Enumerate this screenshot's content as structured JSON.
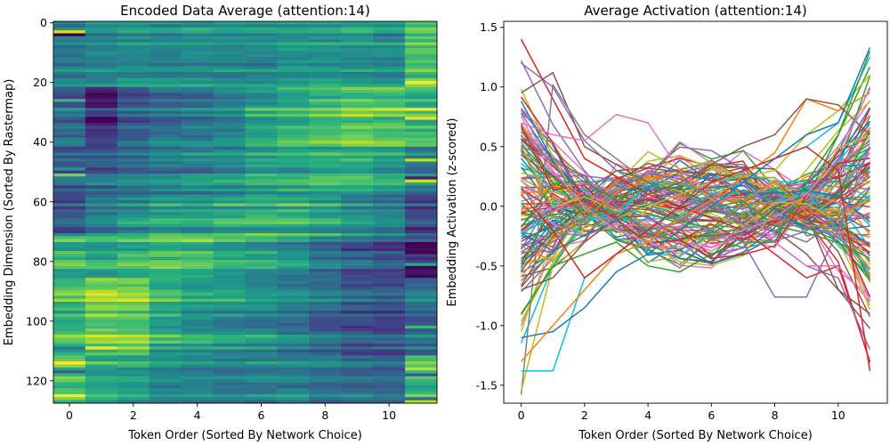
{
  "chart_data": [
    {
      "type": "heatmap",
      "title": "Encoded Data Average (attention:14)",
      "xlabel": "Token Order (Sorted By Network Choice)",
      "ylabel": "Embedding Dimension (Sorted By Rastermap)",
      "n_cols": 12,
      "n_rows": 128,
      "xlim": [
        -0.5,
        11.5
      ],
      "ylim": [
        127.5,
        -0.5
      ],
      "xticks": [
        0,
        2,
        4,
        6,
        8,
        10
      ],
      "yticks": [
        0,
        20,
        40,
        60,
        80,
        100,
        120
      ],
      "colormap": "viridis",
      "value_range": [
        -1.5,
        1.5
      ],
      "row_profiles": [
        {
          "rows": [
            0,
            22
          ],
          "values": [
            -0.2,
            -0.1,
            0.0,
            0.0,
            0.0,
            0.0,
            0.0,
            0.1,
            0.1,
            0.1,
            0.0,
            0.7
          ]
        },
        {
          "rows": [
            22,
            42
          ],
          "values": [
            -0.4,
            -1.0,
            -0.5,
            -0.3,
            -0.2,
            0.0,
            0.3,
            0.5,
            0.7,
            0.9,
            0.8,
            0.6
          ]
        },
        {
          "rows": [
            42,
            58
          ],
          "values": [
            -0.6,
            -0.5,
            -0.3,
            -0.2,
            -0.1,
            0.0,
            0.2,
            0.3,
            0.4,
            0.4,
            0.2,
            -0.2
          ]
        },
        {
          "rows": [
            58,
            72
          ],
          "values": [
            -0.7,
            -0.2,
            0.0,
            0.2,
            0.2,
            0.3,
            0.4,
            0.4,
            0.2,
            0.0,
            -0.2,
            -0.8
          ]
        },
        {
          "rows": [
            72,
            86
          ],
          "values": [
            0.5,
            0.3,
            0.5,
            0.6,
            0.6,
            0.3,
            0.2,
            0.0,
            -0.3,
            -0.6,
            -0.7,
            -1.0
          ]
        },
        {
          "rows": [
            86,
            112
          ],
          "values": [
            0.6,
            1.0,
            0.9,
            0.4,
            0.2,
            0.1,
            0.0,
            -0.2,
            -0.4,
            -0.6,
            -0.7,
            -0.4
          ]
        },
        {
          "rows": [
            112,
            128
          ],
          "values": [
            0.8,
            0.4,
            0.3,
            0.0,
            0.0,
            -0.1,
            -0.1,
            -0.1,
            -0.2,
            -0.3,
            -0.4,
            0.6
          ]
        }
      ]
    },
    {
      "type": "line",
      "title": "Average Activation (attention:14)",
      "xlabel": "Token Order (Sorted By Network Choice)",
      "ylabel": "Embedding Activation (z-scored)",
      "x": [
        0,
        1,
        2,
        3,
        4,
        5,
        6,
        7,
        8,
        9,
        10,
        11
      ],
      "xlim": [
        -0.55,
        11.55
      ],
      "ylim": [
        -1.65,
        1.55
      ],
      "xticks": [
        0,
        2,
        4,
        6,
        8,
        10
      ],
      "yticks": [
        -1.5,
        -1.0,
        -0.5,
        0.0,
        0.5,
        1.0,
        1.5
      ],
      "n_series": 128,
      "colors": [
        "#1f77b4",
        "#ff7f0e",
        "#2ca02c",
        "#d62728",
        "#9467bd",
        "#8c564b",
        "#e377c2",
        "#7f7f7f",
        "#bcbd22",
        "#17becf"
      ],
      "series": [
        {
          "values": [
            1.4,
            0.9,
            0.4,
            0.25,
            0.1,
            0.0,
            -0.1,
            -0.2,
            -0.4,
            -0.6,
            -0.5,
            -1.3
          ]
        },
        {
          "values": [
            1.2,
            1.0,
            0.55,
            0.3,
            0.15,
            0.05,
            0.0,
            -0.15,
            -0.3,
            -0.5,
            -0.6,
            -1.2
          ]
        },
        {
          "values": [
            0.95,
            1.12,
            0.5,
            0.35,
            0.2,
            0.1,
            0.0,
            -0.1,
            -0.2,
            -0.4,
            -0.7,
            -0.9
          ]
        },
        {
          "values": [
            0.7,
            0.6,
            0.55,
            0.77,
            0.7,
            0.3,
            0.1,
            0.0,
            -0.3,
            -0.5,
            -0.5,
            -0.8
          ]
        },
        {
          "values": [
            -1.58,
            1.02,
            0.6,
            0.4,
            0.2,
            0.1,
            0.0,
            -0.1,
            -0.2,
            -0.3,
            -0.1,
            -0.1
          ]
        },
        {
          "values": [
            -1.55,
            -0.5,
            -0.3,
            -0.1,
            0.0,
            0.1,
            0.2,
            0.25,
            0.3,
            0.6,
            0.8,
            1.1
          ]
        },
        {
          "values": [
            -1.38,
            -1.38,
            -0.6,
            -0.4,
            -0.2,
            0.0,
            0.1,
            0.2,
            0.4,
            0.5,
            0.7,
            1.25
          ]
        },
        {
          "values": [
            -1.1,
            -1.05,
            -0.85,
            -0.55,
            -0.4,
            -0.2,
            0.0,
            0.2,
            0.4,
            0.6,
            0.7,
            1.33
          ]
        },
        {
          "values": [
            -1.3,
            -1.0,
            -0.7,
            -0.4,
            -0.3,
            -0.1,
            0.05,
            0.25,
            0.45,
            0.9,
            0.8,
            0.95
          ]
        },
        {
          "values": [
            -0.9,
            -0.5,
            -0.4,
            -0.3,
            -0.5,
            -0.55,
            -0.4,
            -0.3,
            -0.3,
            0.2,
            0.6,
            1.3
          ]
        },
        {
          "values": [
            0.1,
            -0.2,
            -0.6,
            -0.4,
            -0.2,
            0.0,
            0.2,
            0.3,
            0.4,
            0.5,
            0.3,
            -1.38
          ]
        },
        {
          "values": [
            0.5,
            0.4,
            0.2,
            0.0,
            -0.1,
            -0.2,
            -0.2,
            -0.3,
            -0.76,
            -0.76,
            -0.2,
            0.5
          ]
        },
        {
          "values": [
            -0.7,
            -0.6,
            -0.3,
            -0.1,
            0.1,
            0.2,
            0.35,
            0.5,
            0.6,
            0.9,
            0.85,
            0.6
          ]
        },
        {
          "values": [
            0.8,
            0.3,
            0.0,
            -0.2,
            -0.3,
            -0.4,
            -0.3,
            -0.2,
            -0.1,
            0.1,
            0.4,
            1.0
          ]
        },
        {
          "values": [
            -0.4,
            -0.3,
            -0.1,
            0.1,
            0.3,
            0.2,
            0.1,
            0.0,
            -0.1,
            -0.2,
            -0.1,
            0.3
          ]
        }
      ]
    }
  ]
}
